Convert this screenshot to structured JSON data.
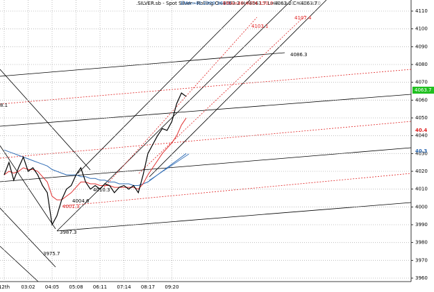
{
  "chart_data": {
    "type": "line",
    "series": [
      {
        "name": ".SILVER.sb - Spot Silver - Rolling O=4063.2 H=4063.7 L=4063.2 C=4063.7",
        "color": "#000000",
        "values": [
          4018,
          4025,
          4015,
          4022,
          4028,
          4020,
          4022,
          4018,
          4012,
          4008,
          3990,
          3995,
          4004,
          4010,
          4012,
          4018,
          4022,
          4014,
          4010,
          4012,
          4010,
          4013,
          4012,
          4008,
          4011,
          4012,
          4010,
          4012,
          4008,
          4018,
          4030,
          4035,
          4040,
          4044,
          4043,
          4048,
          4058,
          4064,
          4062
        ]
      },
      {
        "name": "EMA=40.2909 360.0",
        "color": "#2f6cb5",
        "values": [
          4032,
          4031,
          4030,
          4029,
          4028,
          4027,
          4026,
          4025,
          4024,
          4023,
          4021,
          4020,
          4019,
          4018,
          4018,
          4018,
          4017,
          4017,
          4016,
          4016,
          4015,
          4015,
          4014,
          4014,
          4013,
          4013,
          4013,
          4012,
          4012,
          4013,
          4014,
          4016,
          4018,
          4020,
          4022,
          4024,
          4026,
          4028,
          4030
        ]
      },
      {
        "name": "EMA=40.4074 150.0",
        "color": "#e03030",
        "values": [
          4018,
          4020,
          4019,
          4020,
          4022,
          4021,
          4021,
          4020,
          4017,
          4014,
          4006,
          4004,
          4004,
          4006,
          4008,
          4011,
          4014,
          4014,
          4013,
          4013,
          4012,
          4012,
          4012,
          4011,
          4011,
          4011,
          4011,
          4011,
          4010,
          4013,
          4018,
          4022,
          4026,
          4030,
          4033,
          4036,
          4040,
          4046,
          4050
        ]
      },
      {
        "name": "EMA=40.4220 20.0",
        "color": "#909090",
        "values": []
      }
    ],
    "ylim": [
      3960,
      4110
    ],
    "yticks": [
      3960,
      3970,
      3980,
      3990,
      4000,
      4010,
      4020,
      4030,
      4040,
      4050,
      4060,
      4070,
      4080,
      4090,
      4100,
      4110
    ],
    "xticks": [
      {
        "value": 0,
        "label": "12th"
      },
      {
        "value": 5,
        "label": "03:02"
      },
      {
        "value": 10,
        "label": "04:05"
      },
      {
        "value": 15,
        "label": "05:08"
      },
      {
        "value": 20,
        "label": "06:11"
      },
      {
        "value": 25,
        "label": "07:14"
      },
      {
        "value": 30,
        "label": "08:17"
      },
      {
        "value": 35,
        "label": "09:20"
      }
    ],
    "grid": true,
    "annotations": [
      {
        "text": "4103.1",
        "color": "#e02020"
      },
      {
        "text": "4107.4",
        "color": "#e02020"
      },
      {
        "text": "4086.3",
        "color": "#000000"
      },
      {
        "text": "3975.7",
        "color": "#000000"
      },
      {
        "text": "3987.3",
        "color": "#000000"
      },
      {
        "text": "4001.3",
        "color": "#e02020"
      },
      {
        "text": "4004.6",
        "color": "#000000"
      },
      {
        "text": "4010.3",
        "color": "#000000"
      },
      {
        "text": "8.1",
        "color": "#000000"
      }
    ],
    "axis_labels": [
      {
        "text": "4063.7",
        "color": "#20c020"
      },
      {
        "text": "40.4",
        "color": "#e02020"
      },
      {
        "text": "40.3",
        "color": "#2f6cb5"
      }
    ]
  }
}
